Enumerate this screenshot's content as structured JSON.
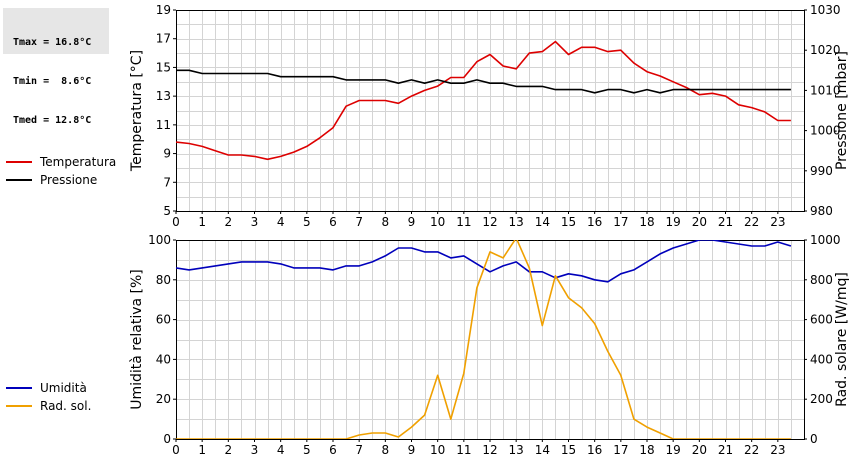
{
  "stats": {
    "tmax": "Tmax = 16.8°C",
    "tmin": "Tmin =  8.6°C",
    "tmed": "Tmed = 12.8°C"
  },
  "legend_top": [
    {
      "label": "Temperatura",
      "color": "#dd0000"
    },
    {
      "label": "Pressione",
      "color": "#000000"
    }
  ],
  "legend_bottom": [
    {
      "label": "Umidità",
      "color": "#0000bb"
    },
    {
      "label": "Rad. sol.",
      "color": "#f0a000"
    }
  ],
  "chart_data": [
    {
      "type": "line",
      "xlim": [
        0,
        24
      ],
      "x_ticks": [
        0,
        1,
        2,
        3,
        4,
        5,
        6,
        7,
        8,
        9,
        10,
        11,
        12,
        13,
        14,
        15,
        16,
        17,
        18,
        19,
        20,
        21,
        22,
        23
      ],
      "ylabel": "Temperatura [°C]",
      "ylim": [
        5,
        19
      ],
      "y_ticks": [
        5,
        7,
        9,
        11,
        13,
        15,
        17,
        19
      ],
      "y2label": "Pressione [mbar]",
      "y2lim": [
        980,
        1030
      ],
      "y2_ticks": [
        980,
        990,
        1000,
        1010,
        1020,
        1030
      ],
      "grid": true,
      "series": [
        {
          "name": "Temperatura",
          "axis": "left",
          "color": "#dd0000",
          "points": [
            [
              0,
              9.8
            ],
            [
              0.5,
              9.7
            ],
            [
              1,
              9.5
            ],
            [
              1.5,
              9.2
            ],
            [
              2,
              8.9
            ],
            [
              2.5,
              8.9
            ],
            [
              3,
              8.8
            ],
            [
              3.5,
              8.6
            ],
            [
              4,
              8.8
            ],
            [
              4.5,
              9.1
            ],
            [
              5,
              9.5
            ],
            [
              5.5,
              10.1
            ],
            [
              6,
              10.8
            ],
            [
              6.5,
              12.3
            ],
            [
              7,
              12.7
            ],
            [
              7.5,
              12.7
            ],
            [
              8,
              12.7
            ],
            [
              8.5,
              12.5
            ],
            [
              9,
              13
            ],
            [
              9.5,
              13.4
            ],
            [
              10,
              13.7
            ],
            [
              10.5,
              14.3
            ],
            [
              11,
              14.3
            ],
            [
              11.5,
              15.4
            ],
            [
              12,
              15.9
            ],
            [
              12.5,
              15.1
            ],
            [
              13,
              14.9
            ],
            [
              13.5,
              16
            ],
            [
              14,
              16.1
            ],
            [
              14.5,
              16.8
            ],
            [
              15,
              15.9
            ],
            [
              15.5,
              16.4
            ],
            [
              16,
              16.4
            ],
            [
              16.5,
              16.1
            ],
            [
              17,
              16.2
            ],
            [
              17.5,
              15.3
            ],
            [
              18,
              14.7
            ],
            [
              18.5,
              14.4
            ],
            [
              19,
              14
            ],
            [
              19.5,
              13.6
            ],
            [
              20,
              13.1
            ],
            [
              20.5,
              13.2
            ],
            [
              21,
              13
            ],
            [
              21.5,
              12.4
            ],
            [
              22,
              12.2
            ],
            [
              22.5,
              11.9
            ],
            [
              23,
              11.3
            ],
            [
              23.5,
              11.3
            ]
          ]
        },
        {
          "name": "Pressione",
          "axis": "right",
          "color": "#000000",
          "points": [
            [
              0,
              1015
            ],
            [
              0.5,
              1015
            ],
            [
              1,
              1014.2
            ],
            [
              1.5,
              1014.2
            ],
            [
              2,
              1014.2
            ],
            [
              2.5,
              1014.2
            ],
            [
              3,
              1014.2
            ],
            [
              3.5,
              1014.2
            ],
            [
              4,
              1013.4
            ],
            [
              4.5,
              1013.4
            ],
            [
              5,
              1013.4
            ],
            [
              5.5,
              1013.4
            ],
            [
              6,
              1013.4
            ],
            [
              6.5,
              1012.6
            ],
            [
              7,
              1012.6
            ],
            [
              7.5,
              1012.6
            ],
            [
              8,
              1012.6
            ],
            [
              8.5,
              1011.8
            ],
            [
              9,
              1012.6
            ],
            [
              9.5,
              1011.8
            ],
            [
              10,
              1012.6
            ],
            [
              10.5,
              1011.8
            ],
            [
              11,
              1011.8
            ],
            [
              11.5,
              1012.6
            ],
            [
              12,
              1011.8
            ],
            [
              12.5,
              1011.8
            ],
            [
              13,
              1011
            ],
            [
              13.5,
              1011
            ],
            [
              14,
              1011
            ],
            [
              14.5,
              1010.2
            ],
            [
              15,
              1010.2
            ],
            [
              15.5,
              1010.2
            ],
            [
              16,
              1009.4
            ],
            [
              16.5,
              1010.2
            ],
            [
              17,
              1010.2
            ],
            [
              17.5,
              1009.4
            ],
            [
              18,
              1010.2
            ],
            [
              18.5,
              1009.4
            ],
            [
              19,
              1010.2
            ],
            [
              19.5,
              1010.2
            ],
            [
              20,
              1010.2
            ],
            [
              20.5,
              1010.2
            ],
            [
              21,
              1010.2
            ],
            [
              21.5,
              1010.2
            ],
            [
              22,
              1010.2
            ],
            [
              22.5,
              1010.2
            ],
            [
              23,
              1010.2
            ],
            [
              23.5,
              1010.2
            ]
          ]
        }
      ]
    },
    {
      "type": "line",
      "xlim": [
        0,
        24
      ],
      "x_ticks": [
        0,
        1,
        2,
        3,
        4,
        5,
        6,
        7,
        8,
        9,
        10,
        11,
        12,
        13,
        14,
        15,
        16,
        17,
        18,
        19,
        20,
        21,
        22,
        23
      ],
      "ylabel": "Umidità relativa [%]",
      "ylim": [
        0,
        100
      ],
      "y_ticks": [
        0,
        20,
        40,
        60,
        80,
        100
      ],
      "y2label": "Rad. solare [W/mq]",
      "y2lim": [
        0,
        1000
      ],
      "y2_ticks": [
        0,
        200,
        400,
        600,
        800,
        1000
      ],
      "grid": true,
      "series": [
        {
          "name": "Umidità",
          "axis": "left",
          "color": "#0000bb",
          "points": [
            [
              0,
              86
            ],
            [
              0.5,
              85
            ],
            [
              1,
              86
            ],
            [
              1.5,
              87
            ],
            [
              2,
              88
            ],
            [
              2.5,
              89
            ],
            [
              3,
              89
            ],
            [
              3.5,
              89
            ],
            [
              4,
              88
            ],
            [
              4.5,
              86
            ],
            [
              5,
              86
            ],
            [
              5.5,
              86
            ],
            [
              6,
              85
            ],
            [
              6.5,
              87
            ],
            [
              7,
              87
            ],
            [
              7.5,
              89
            ],
            [
              8,
              92
            ],
            [
              8.5,
              96
            ],
            [
              9,
              96
            ],
            [
              9.5,
              94
            ],
            [
              10,
              94
            ],
            [
              10.5,
              91
            ],
            [
              11,
              92
            ],
            [
              11.5,
              88
            ],
            [
              12,
              84
            ],
            [
              12.5,
              87
            ],
            [
              13,
              89
            ],
            [
              13.5,
              84
            ],
            [
              14,
              84
            ],
            [
              14.5,
              81
            ],
            [
              15,
              83
            ],
            [
              15.5,
              82
            ],
            [
              16,
              80
            ],
            [
              16.5,
              79
            ],
            [
              17,
              83
            ],
            [
              17.5,
              85
            ],
            [
              18,
              89
            ],
            [
              18.5,
              93
            ],
            [
              19,
              96
            ],
            [
              19.5,
              98
            ],
            [
              20,
              100
            ],
            [
              20.5,
              100
            ],
            [
              21,
              99
            ],
            [
              21.5,
              98
            ],
            [
              22,
              97
            ],
            [
              22.5,
              97
            ],
            [
              23,
              99
            ],
            [
              23.5,
              97
            ]
          ]
        },
        {
          "name": "Rad. sol.",
          "axis": "right",
          "color": "#f0a000",
          "points": [
            [
              0,
              0
            ],
            [
              0.5,
              0
            ],
            [
              1,
              0
            ],
            [
              1.5,
              0
            ],
            [
              2,
              0
            ],
            [
              2.5,
              0
            ],
            [
              3,
              0
            ],
            [
              3.5,
              0
            ],
            [
              4,
              0
            ],
            [
              4.5,
              0
            ],
            [
              5,
              0
            ],
            [
              5.5,
              0
            ],
            [
              6,
              0
            ],
            [
              6.5,
              0
            ],
            [
              7,
              20
            ],
            [
              7.5,
              30
            ],
            [
              8,
              30
            ],
            [
              8.5,
              10
            ],
            [
              9,
              60
            ],
            [
              9.5,
              120
            ],
            [
              10,
              320
            ],
            [
              10.5,
              100
            ],
            [
              11,
              330
            ],
            [
              11.5,
              760
            ],
            [
              12,
              940
            ],
            [
              12.5,
              910
            ],
            [
              13,
              1010
            ],
            [
              13.5,
              860
            ],
            [
              14,
              570
            ],
            [
              14.5,
              820
            ],
            [
              15,
              710
            ],
            [
              15.5,
              660
            ],
            [
              16,
              580
            ],
            [
              16.5,
              440
            ],
            [
              17,
              320
            ],
            [
              17.5,
              100
            ],
            [
              18,
              60
            ],
            [
              18.5,
              30
            ],
            [
              19,
              0
            ],
            [
              19.5,
              0
            ],
            [
              20,
              0
            ],
            [
              20.5,
              0
            ],
            [
              21,
              0
            ],
            [
              21.5,
              0
            ],
            [
              22,
              0
            ],
            [
              22.5,
              0
            ],
            [
              23,
              0
            ],
            [
              23.5,
              0
            ]
          ]
        }
      ]
    }
  ]
}
